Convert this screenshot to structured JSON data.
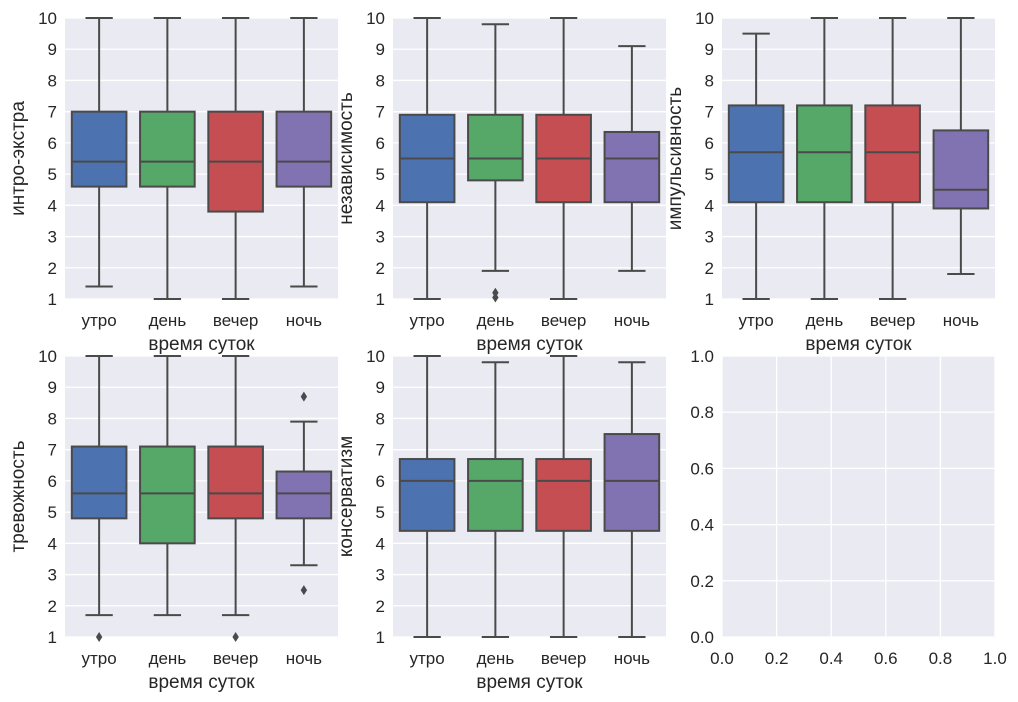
{
  "figure": {
    "background": "#ffffff",
    "panel_background": "#eaeaf2",
    "grid_color": "#ffffff",
    "edge_color": "#4a4a4a"
  },
  "chart_data": [
    {
      "type": "box",
      "xlabel": "время суток",
      "ylabel": "интро-экстра",
      "ylim": [
        1,
        10
      ],
      "yticks": [
        "1",
        "2",
        "3",
        "4",
        "5",
        "6",
        "7",
        "8",
        "9",
        "10"
      ],
      "categories": [
        "утро",
        "день",
        "вечер",
        "ночь"
      ],
      "colors": [
        "#4c72b0",
        "#55a868",
        "#c44e52",
        "#8172b2"
      ],
      "boxes": [
        {
          "whislo": 1.4,
          "q1": 4.6,
          "med": 5.4,
          "q3": 7.0,
          "whishi": 10.0,
          "fliers": []
        },
        {
          "whislo": 1.0,
          "q1": 4.6,
          "med": 5.4,
          "q3": 7.0,
          "whishi": 10.0,
          "fliers": []
        },
        {
          "whislo": 1.0,
          "q1": 3.8,
          "med": 5.4,
          "q3": 7.0,
          "whishi": 10.0,
          "fliers": []
        },
        {
          "whislo": 1.4,
          "q1": 4.6,
          "med": 5.4,
          "q3": 7.0,
          "whishi": 10.0,
          "fliers": []
        }
      ]
    },
    {
      "type": "box",
      "xlabel": "время суток",
      "ylabel": "независимость",
      "ylim": [
        1,
        10
      ],
      "yticks": [
        "1",
        "2",
        "3",
        "4",
        "5",
        "6",
        "7",
        "8",
        "9",
        "10"
      ],
      "categories": [
        "утро",
        "день",
        "вечер",
        "ночь"
      ],
      "colors": [
        "#4c72b0",
        "#55a868",
        "#c44e52",
        "#8172b2"
      ],
      "boxes": [
        {
          "whislo": 1.0,
          "q1": 4.1,
          "med": 5.5,
          "q3": 6.9,
          "whishi": 10.0,
          "fliers": []
        },
        {
          "whislo": 1.9,
          "q1": 4.8,
          "med": 5.5,
          "q3": 6.9,
          "whishi": 9.8,
          "fliers": [
            1.2,
            1.05
          ]
        },
        {
          "whislo": 1.0,
          "q1": 4.1,
          "med": 5.5,
          "q3": 6.9,
          "whishi": 10.0,
          "fliers": []
        },
        {
          "whislo": 1.9,
          "q1": 4.1,
          "med": 5.5,
          "q3": 6.35,
          "whishi": 9.1,
          "fliers": []
        }
      ]
    },
    {
      "type": "box",
      "xlabel": "время суток",
      "ylabel": "импульсивность",
      "ylim": [
        1,
        10
      ],
      "yticks": [
        "1",
        "2",
        "3",
        "4",
        "5",
        "6",
        "7",
        "8",
        "9",
        "10"
      ],
      "categories": [
        "утро",
        "день",
        "вечер",
        "ночь"
      ],
      "colors": [
        "#4c72b0",
        "#55a868",
        "#c44e52",
        "#8172b2"
      ],
      "boxes": [
        {
          "whislo": 1.0,
          "q1": 4.1,
          "med": 5.7,
          "q3": 7.2,
          "whishi": 9.5,
          "fliers": []
        },
        {
          "whislo": 1.0,
          "q1": 4.1,
          "med": 5.7,
          "q3": 7.2,
          "whishi": 10.0,
          "fliers": []
        },
        {
          "whislo": 1.0,
          "q1": 4.1,
          "med": 5.7,
          "q3": 7.2,
          "whishi": 10.0,
          "fliers": []
        },
        {
          "whislo": 1.8,
          "q1": 3.9,
          "med": 4.5,
          "q3": 6.4,
          "whishi": 10.0,
          "fliers": []
        }
      ]
    },
    {
      "type": "box",
      "xlabel": "время суток",
      "ylabel": "тревожность",
      "ylim": [
        1,
        10
      ],
      "yticks": [
        "1",
        "2",
        "3",
        "4",
        "5",
        "6",
        "7",
        "8",
        "9",
        "10"
      ],
      "categories": [
        "утро",
        "день",
        "вечер",
        "ночь"
      ],
      "colors": [
        "#4c72b0",
        "#55a868",
        "#c44e52",
        "#8172b2"
      ],
      "boxes": [
        {
          "whislo": 1.7,
          "q1": 4.8,
          "med": 5.6,
          "q3": 7.1,
          "whishi": 10.0,
          "fliers": [
            1.0
          ]
        },
        {
          "whislo": 1.7,
          "q1": 4.0,
          "med": 5.6,
          "q3": 7.1,
          "whishi": 10.0,
          "fliers": []
        },
        {
          "whislo": 1.7,
          "q1": 4.8,
          "med": 5.6,
          "q3": 7.1,
          "whishi": 10.0,
          "fliers": [
            1.0
          ]
        },
        {
          "whislo": 3.3,
          "q1": 4.8,
          "med": 5.6,
          "q3": 6.3,
          "whishi": 7.9,
          "fliers": [
            8.7,
            2.5
          ]
        }
      ]
    },
    {
      "type": "box",
      "xlabel": "время суток",
      "ylabel": "консерватизм",
      "ylim": [
        1,
        10
      ],
      "yticks": [
        "1",
        "2",
        "3",
        "4",
        "5",
        "6",
        "7",
        "8",
        "9",
        "10"
      ],
      "categories": [
        "утро",
        "день",
        "вечер",
        "ночь"
      ],
      "colors": [
        "#4c72b0",
        "#55a868",
        "#c44e52",
        "#8172b2"
      ],
      "boxes": [
        {
          "whislo": 1.0,
          "q1": 4.4,
          "med": 6.0,
          "q3": 6.7,
          "whishi": 10.0,
          "fliers": []
        },
        {
          "whislo": 1.0,
          "q1": 4.4,
          "med": 6.0,
          "q3": 6.7,
          "whishi": 9.8,
          "fliers": []
        },
        {
          "whislo": 1.0,
          "q1": 4.4,
          "med": 6.0,
          "q3": 6.7,
          "whishi": 10.0,
          "fliers": []
        },
        {
          "whislo": 1.0,
          "q1": 4.4,
          "med": 6.0,
          "q3": 7.5,
          "whishi": 9.8,
          "fliers": []
        }
      ]
    },
    {
      "type": "empty",
      "xlim": [
        0,
        1
      ],
      "ylim": [
        0,
        1
      ],
      "xticks": [
        "0.0",
        "0.2",
        "0.4",
        "0.6",
        "0.8",
        "1.0"
      ],
      "yticks": [
        "0.0",
        "0.2",
        "0.4",
        "0.6",
        "0.8",
        "1.0"
      ]
    }
  ]
}
